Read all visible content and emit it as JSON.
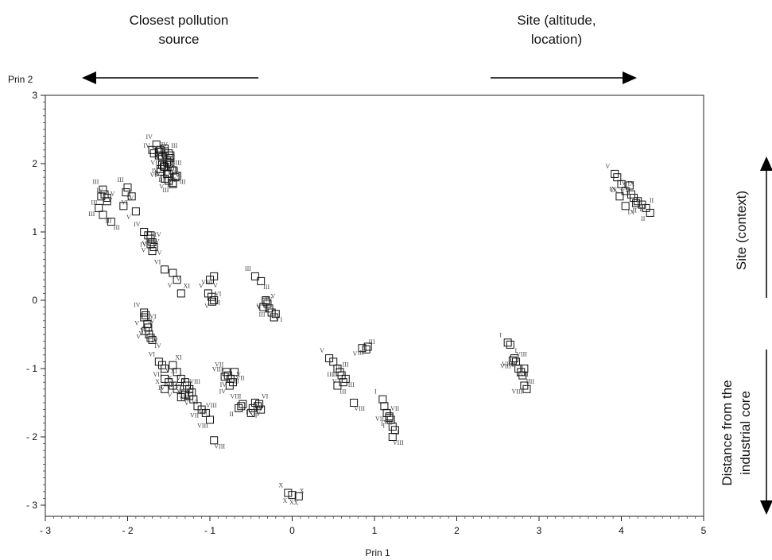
{
  "annotations": {
    "top_left": [
      "Closest pollution",
      "source"
    ],
    "top_right": [
      "Site (altitude,",
      "location)"
    ],
    "right_upper": "Site (context)",
    "right_lower": [
      "Distance from the",
      "industrial core"
    ]
  },
  "chart_data": {
    "type": "scatter",
    "title": "",
    "xlabel": "Prin 1",
    "ylabel": "Prin 2",
    "xlim": [
      -3,
      5
    ],
    "ylim": [
      -3.1,
      3
    ],
    "xticks": [
      -3,
      -2,
      -1,
      0,
      1,
      2,
      3,
      4,
      5
    ],
    "yticks": [
      -3,
      -2,
      -1,
      0,
      1,
      2,
      3
    ],
    "xtick_labels": [
      "- 3",
      "- 2",
      "- 1",
      "0",
      "1",
      "2",
      "3",
      "4",
      "5"
    ],
    "ytick_labels": [
      "- 3",
      "- 2",
      "- 1",
      "0",
      "1",
      "2",
      "3"
    ],
    "grid": false,
    "legend": "none",
    "marker": "open square",
    "series": [
      {
        "x": [
          -1.65,
          -1.6,
          -1.55,
          -1.5,
          -1.58,
          -1.52,
          -1.48,
          -1.62,
          -1.55,
          -1.45,
          -1.5,
          -1.6,
          -1.42,
          -1.55,
          -1.5,
          -1.45,
          -1.58,
          -1.52,
          -1.48,
          -1.4,
          -1.45,
          -1.62,
          -1.55,
          -1.5,
          -1.68,
          -1.7,
          -1.6,
          -1.56,
          -1.48,
          -1.52
        ],
        "y": [
          2.28,
          2.2,
          2.18,
          2.15,
          2.1,
          2.05,
          2.0,
          2.12,
          1.95,
          1.9,
          1.85,
          1.88,
          1.8,
          1.78,
          1.75,
          1.72,
          1.98,
          2.02,
          2.08,
          1.82,
          1.7,
          2.17,
          2.22,
          2.0,
          2.15,
          2.2,
          1.92,
          1.96,
          2.12,
          1.85
        ],
        "labels": [
          "IV",
          "IV",
          "V",
          "III",
          "VII",
          "V",
          "VI",
          "VI",
          "IV",
          "III",
          "III",
          "VI",
          "III",
          "III",
          "V",
          "VI",
          "IV",
          "VII",
          "III",
          "III",
          "III",
          "IV",
          "V",
          "VII",
          "IV",
          "V",
          "VI",
          "VII",
          "IV",
          "III"
        ]
      },
      {
        "x": [
          -2.3,
          -2.28,
          -2.32,
          -2.25,
          -2.35,
          -2.2,
          -2.0,
          -2.02,
          -1.95,
          -2.05,
          -1.9,
          -2.3,
          -2.25
        ],
        "y": [
          1.62,
          1.55,
          1.52,
          1.45,
          1.35,
          1.15,
          1.65,
          1.58,
          1.52,
          1.38,
          1.3,
          1.25,
          1.5
        ],
        "labels": [
          "III",
          "V",
          "III",
          "V",
          "III",
          "III",
          "III",
          "V",
          "VI",
          "V",
          "V",
          "III",
          "IV"
        ]
      },
      {
        "x": [
          -1.8,
          -1.75,
          -1.72,
          -1.7,
          -1.72,
          -1.68,
          -1.7,
          -1.72
        ],
        "y": [
          1.0,
          0.95,
          0.9,
          0.85,
          0.82,
          0.78,
          0.72,
          0.95
        ],
        "labels": [
          "IV",
          "IV",
          "IV",
          "IV",
          "V",
          "V",
          "VI",
          "IV"
        ]
      },
      {
        "x": [
          -1.55,
          -1.45,
          -1.4,
          -1.35,
          -0.95,
          -1.0,
          -1.02,
          -0.98,
          -0.95,
          -0.97
        ],
        "y": [
          0.45,
          0.4,
          0.3,
          0.1,
          0.35,
          0.3,
          0.1,
          0.05,
          0.0,
          -0.02
        ],
        "labels": [
          "VI",
          "V",
          "V",
          "XI",
          "VIII",
          "V",
          "V",
          "VI",
          "V",
          "VI"
        ]
      },
      {
        "x": [
          -0.45,
          -0.38,
          -0.32,
          -0.3,
          -0.28,
          -0.25,
          -0.22,
          -0.2,
          -0.32,
          -0.35
        ],
        "y": [
          0.35,
          0.28,
          0.0,
          -0.05,
          -0.12,
          -0.18,
          -0.25,
          -0.2,
          -0.02,
          -0.1
        ],
        "labels": [
          "III",
          "III",
          "V",
          "V",
          "III",
          "V",
          "I",
          "I",
          "V",
          "IV"
        ]
      },
      {
        "x": [
          -1.8,
          -1.78,
          -1.8,
          -1.76,
          -1.75,
          -1.74,
          -1.72,
          -1.7,
          -1.78
        ],
        "y": [
          -0.18,
          -0.22,
          -0.25,
          -0.35,
          -0.4,
          -0.5,
          -0.55,
          -0.58,
          -0.45
        ],
        "labels": [
          "IV",
          "IV",
          "V",
          "VI",
          "V",
          "IV",
          "VI",
          "IV",
          "V"
        ]
      },
      {
        "x": [
          -1.62,
          -1.58,
          -1.55,
          -1.45,
          -1.4,
          -1.38,
          -1.35,
          -1.3,
          -1.28,
          -1.25,
          -1.22,
          -1.25,
          -1.3,
          -1.35,
          -1.4,
          -1.45,
          -1.5,
          -1.55,
          -1.2,
          -1.15,
          -1.1,
          -1.05,
          -1.0,
          -0.95,
          -1.55
        ],
        "y": [
          -0.9,
          -0.95,
          -1.0,
          -0.95,
          -1.05,
          -1.1,
          -1.15,
          -1.2,
          -1.25,
          -1.3,
          -1.35,
          -1.4,
          -1.38,
          -1.42,
          -1.3,
          -1.25,
          -1.2,
          -1.15,
          -1.45,
          -1.55,
          -1.6,
          -1.65,
          -1.75,
          -2.05,
          -1.3
        ],
        "labels": [
          "VI",
          "V",
          "VII",
          "XI",
          "X",
          "X",
          "XI",
          "XI",
          "XI",
          "VIII",
          "VIII",
          "VI",
          "VI",
          "V",
          "V",
          "V",
          "IV",
          "VII",
          "VII",
          "VII",
          "VII",
          "VIII",
          "VIII",
          "VIII",
          "X"
        ]
      },
      {
        "x": [
          -0.8,
          -0.78,
          -0.75,
          -0.72,
          -0.76,
          -0.7,
          -0.82,
          -0.45,
          -0.42,
          -0.4,
          -0.38,
          -0.48,
          -0.6,
          -0.62,
          -0.65,
          -0.5
        ],
        "y": [
          -1.05,
          -1.1,
          -1.15,
          -1.2,
          -1.25,
          -1.05,
          -1.12,
          -1.5,
          -1.55,
          -1.52,
          -1.6,
          -1.58,
          -1.52,
          -1.55,
          -1.58,
          -1.65
        ],
        "labels": [
          "VII",
          "VIII",
          "IV",
          "V",
          "IV",
          "VII",
          "VIII",
          "V",
          "V",
          "VI",
          "VI",
          "V",
          "VIII",
          "I",
          "II",
          "V"
        ]
      },
      {
        "x": [
          0.45,
          0.5,
          0.55,
          0.58,
          0.6,
          0.65,
          0.62,
          0.55,
          0.85,
          0.9,
          0.92,
          0.75
        ],
        "y": [
          -0.85,
          -0.9,
          -1.0,
          -1.05,
          -1.1,
          -1.15,
          -1.2,
          -1.25,
          -0.7,
          -0.72,
          -0.68,
          -1.5
        ],
        "labels": [
          "V",
          "III",
          "III",
          "III",
          "V",
          "III",
          "III",
          "III",
          "V",
          "III",
          "III",
          "VIII"
        ]
      },
      {
        "x": [
          1.1,
          1.12,
          1.15,
          1.18,
          1.2,
          1.22,
          1.25,
          1.22,
          1.18
        ],
        "y": [
          -1.45,
          -1.55,
          -1.65,
          -1.7,
          -1.75,
          -1.85,
          -1.9,
          -2.0,
          -1.72
        ],
        "labels": [
          "I",
          "I",
          "VII",
          "VII",
          "I",
          "I",
          "VII",
          "VIII",
          "I"
        ]
      },
      {
        "x": [
          2.62,
          2.65,
          2.7,
          2.72,
          2.68,
          2.75,
          2.78,
          2.8,
          2.82,
          2.85,
          2.82
        ],
        "y": [
          -0.62,
          -0.65,
          -0.85,
          -0.9,
          -0.88,
          -1.0,
          -1.05,
          -1.1,
          -1.25,
          -1.3,
          -1.0
        ],
        "labels": [
          "I",
          "I",
          "VIII",
          "VIII",
          "VIII",
          "VII",
          "II",
          "II",
          "VIII",
          "II",
          "I"
        ]
      },
      {
        "x": [
          3.92,
          3.95,
          4.0,
          4.05,
          4.1,
          4.12,
          4.15,
          4.2,
          4.25,
          4.3,
          4.35,
          4.05,
          3.98,
          4.18
        ],
        "y": [
          1.85,
          1.8,
          1.7,
          1.6,
          1.68,
          1.55,
          1.5,
          1.45,
          1.4,
          1.35,
          1.28,
          1.38,
          1.52,
          1.42
        ],
        "labels": [
          "V",
          "IV",
          "IX",
          "IX",
          "V",
          "I",
          "I",
          "II",
          "II",
          "II",
          "II",
          "IX",
          "IX",
          "II"
        ]
      },
      {
        "x": [
          -0.05,
          -0.02,
          0.0,
          0.05,
          0.08
        ],
        "y": [
          -2.82,
          -2.88,
          -2.85,
          -2.9,
          -2.87
        ],
        "labels": [
          "X",
          "X",
          "X",
          "X",
          "X"
        ]
      }
    ]
  }
}
